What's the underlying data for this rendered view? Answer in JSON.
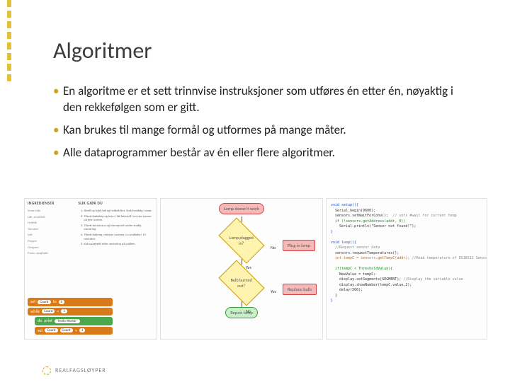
{
  "accent": {
    "color": "#e0c23a",
    "dash_count": 8
  },
  "title": "Algoritmer",
  "bullet_color": "#d4a017",
  "bullets": [
    "En algoritme er et sett trinnvise instruksjoner som utføres én etter én, nøyaktig i den rekkefølgen som er gitt.",
    "Kan brukes til mange formål og utformes på mange måter.",
    "Alle dataprogrammer består av én eller flere algoritmer."
  ],
  "recipe": {
    "head_left": "INGREDIENSER",
    "head_right": "SLIK GJØR DU",
    "ingredients": [
      "Smør/olje",
      "Løk, smuldret",
      "Hvitløk",
      "Tomater",
      "Salt",
      "Pepper",
      "Oregano",
      "Pasta, spaghetti"
    ],
    "steps": [
      "Skrell og hakk løk og hvitløk fint. Stek forsiktig i smør.",
      "Tilsett kjøttdeig og brun i litt fettstoff i en stor panne på jevn varme.",
      "Tilsett tomatsaus og tomatpuré under stadig omrøring.",
      "Tilsett buljong, reduser varmen. La småkoke i 15 minutter.",
      "Kok spaghetti etter anvisning på pakken."
    ]
  },
  "blocks": {
    "set_label": "set",
    "var": "Count",
    "to": "to",
    "while": "while",
    "lt": "<",
    "five": "5",
    "print": "print",
    "hello": "\"Hello World!\"",
    "plus": "+",
    "one": "1"
  },
  "flowchart": {
    "colors": {
      "start_bg": "#f7b8b8",
      "start_border": "#cc4444",
      "decision_bg": "#fff3b0",
      "decision_border": "#cc9900",
      "process_bg": "#f7b8b8",
      "process_border": "#cc4444",
      "fix_bg": "#c8f0c8",
      "fix_border": "#3a9a3a"
    },
    "start": "Lamp doesn't work",
    "d1": "Lamp plugged in?",
    "d1_no": "No",
    "d1_yes": "Yes",
    "p1": "Plug in lamp",
    "d2": "Bulb burned out?",
    "d2_yes": "Yes",
    "d2_no": "No",
    "p2": "Replace bulb",
    "end": "Repair lamp"
  },
  "code": {
    "l1": "void setup(){",
    "l2": "  Serial.begin(9600);",
    "l3": "  sensors.setWaitForConv();",
    "l3c": "  // sets #wait for current temp",
    "l4": "  if (!sensors.getAddress(addr, 0))",
    "l5": "    Serial.println(\"Sensor not found!\");",
    "l6": "}",
    "l7": "void loop(){",
    "l8": "  //Request sensor data",
    "l9": "  sensors.requestTemperatures();",
    "l10": "  int tempC = sensors.getTempC(addr);",
    "l10c": " //Read temperature of DS18S12 Sensor",
    "l11": "  if(tempC < ThresholdValue){",
    "l12": "    NewValue = tempC;",
    "l13": "    display.setSegments(SEGMENT);",
    "l13c": " //Display the variable value",
    "l14": "    display.showNumber(tempC.value,2);",
    "l15": "    delay(500);",
    "l16": "  }",
    "l17": "}"
  },
  "footer": "REALFAGSLØYPER"
}
